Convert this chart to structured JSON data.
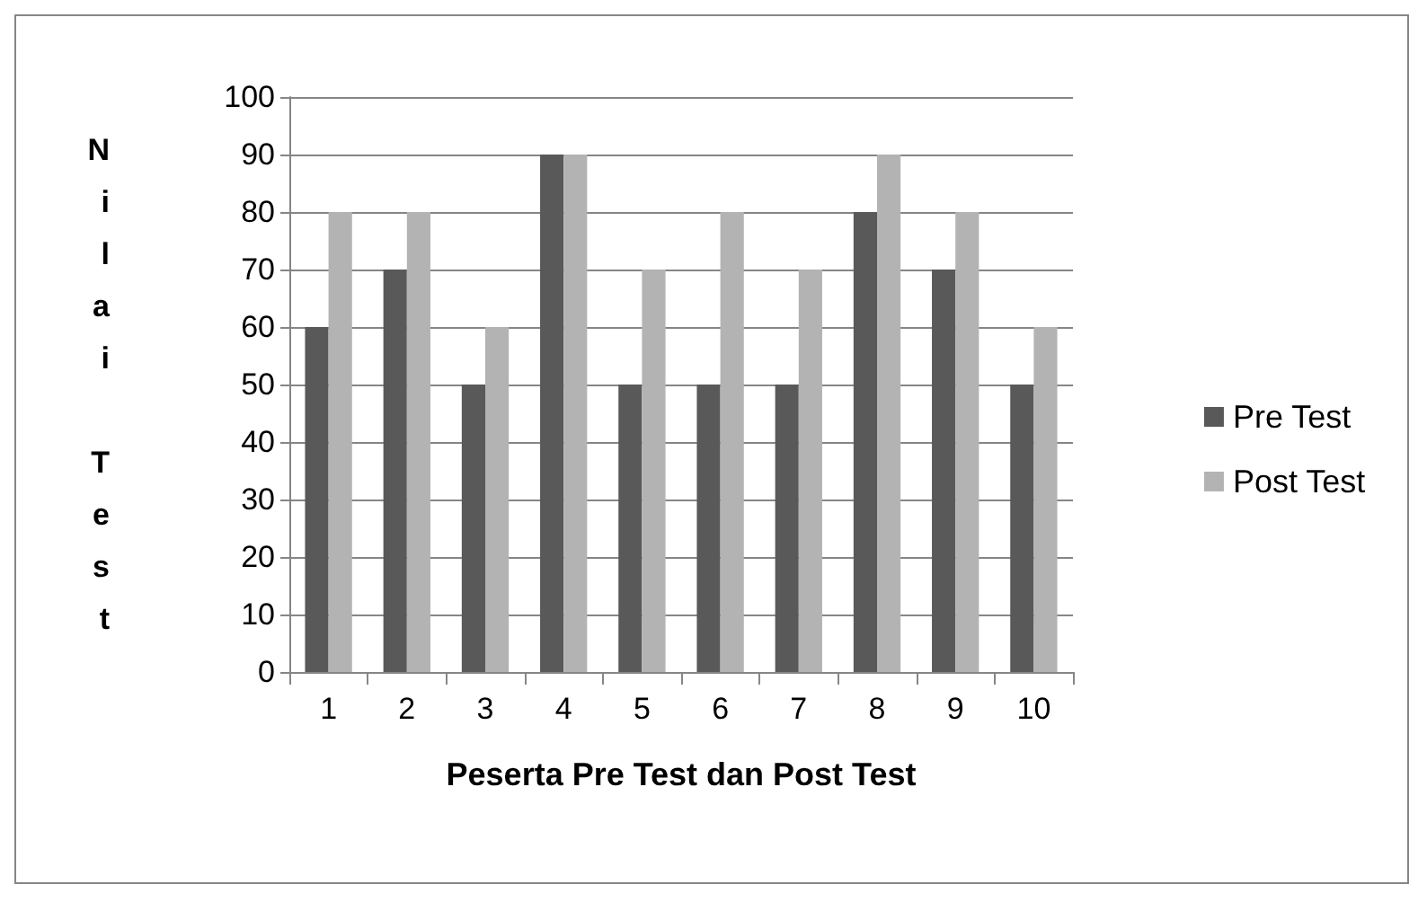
{
  "chart_data": {
    "type": "bar",
    "xlabel": "Peserta Pre Test dan Post Test",
    "ylabel": "Nilai Test",
    "categories": [
      "1",
      "2",
      "3",
      "4",
      "5",
      "6",
      "7",
      "8",
      "9",
      "10"
    ],
    "series": [
      {
        "name": "Pre Test",
        "color": "#595959",
        "values": [
          60,
          70,
          50,
          90,
          50,
          50,
          50,
          80,
          70,
          50
        ]
      },
      {
        "name": "Post Test",
        "color": "#b3b3b3",
        "values": [
          80,
          80,
          60,
          90,
          70,
          80,
          70,
          90,
          80,
          60
        ]
      }
    ],
    "ylim": [
      0,
      100
    ],
    "yticks": [
      0,
      10,
      20,
      30,
      40,
      50,
      60,
      70,
      80,
      90,
      100
    ],
    "grid": "y",
    "legend": "right"
  }
}
